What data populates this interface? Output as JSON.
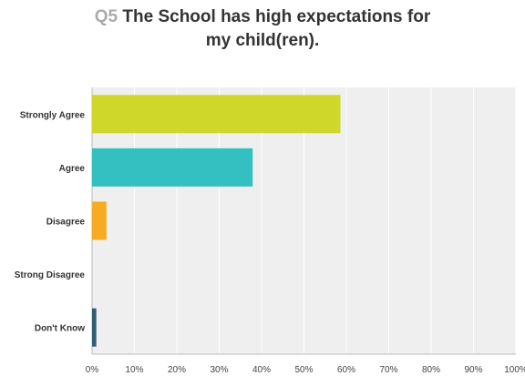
{
  "question_number": "Q5",
  "question_line1": "The School has high expectations for",
  "question_line2": "my child(ren).",
  "chart_data": {
    "type": "bar",
    "orientation": "horizontal",
    "categories": [
      "Strongly Agree",
      "Agree",
      "Disagree",
      "Strong Disagree",
      "Don't Know"
    ],
    "values": [
      58.6,
      37.9,
      3.4,
      0,
      1.0
    ],
    "colors": [
      "#cfd72b",
      "#34bfc0",
      "#f6ab23",
      "#8a9fb3",
      "#2f5f73"
    ],
    "xlim": [
      0,
      100
    ],
    "xticks": [
      "0%",
      "10%",
      "20%",
      "30%",
      "40%",
      "50%",
      "60%",
      "70%",
      "80%",
      "90%",
      "100%"
    ],
    "grid": true,
    "background_color": "#efefef"
  }
}
